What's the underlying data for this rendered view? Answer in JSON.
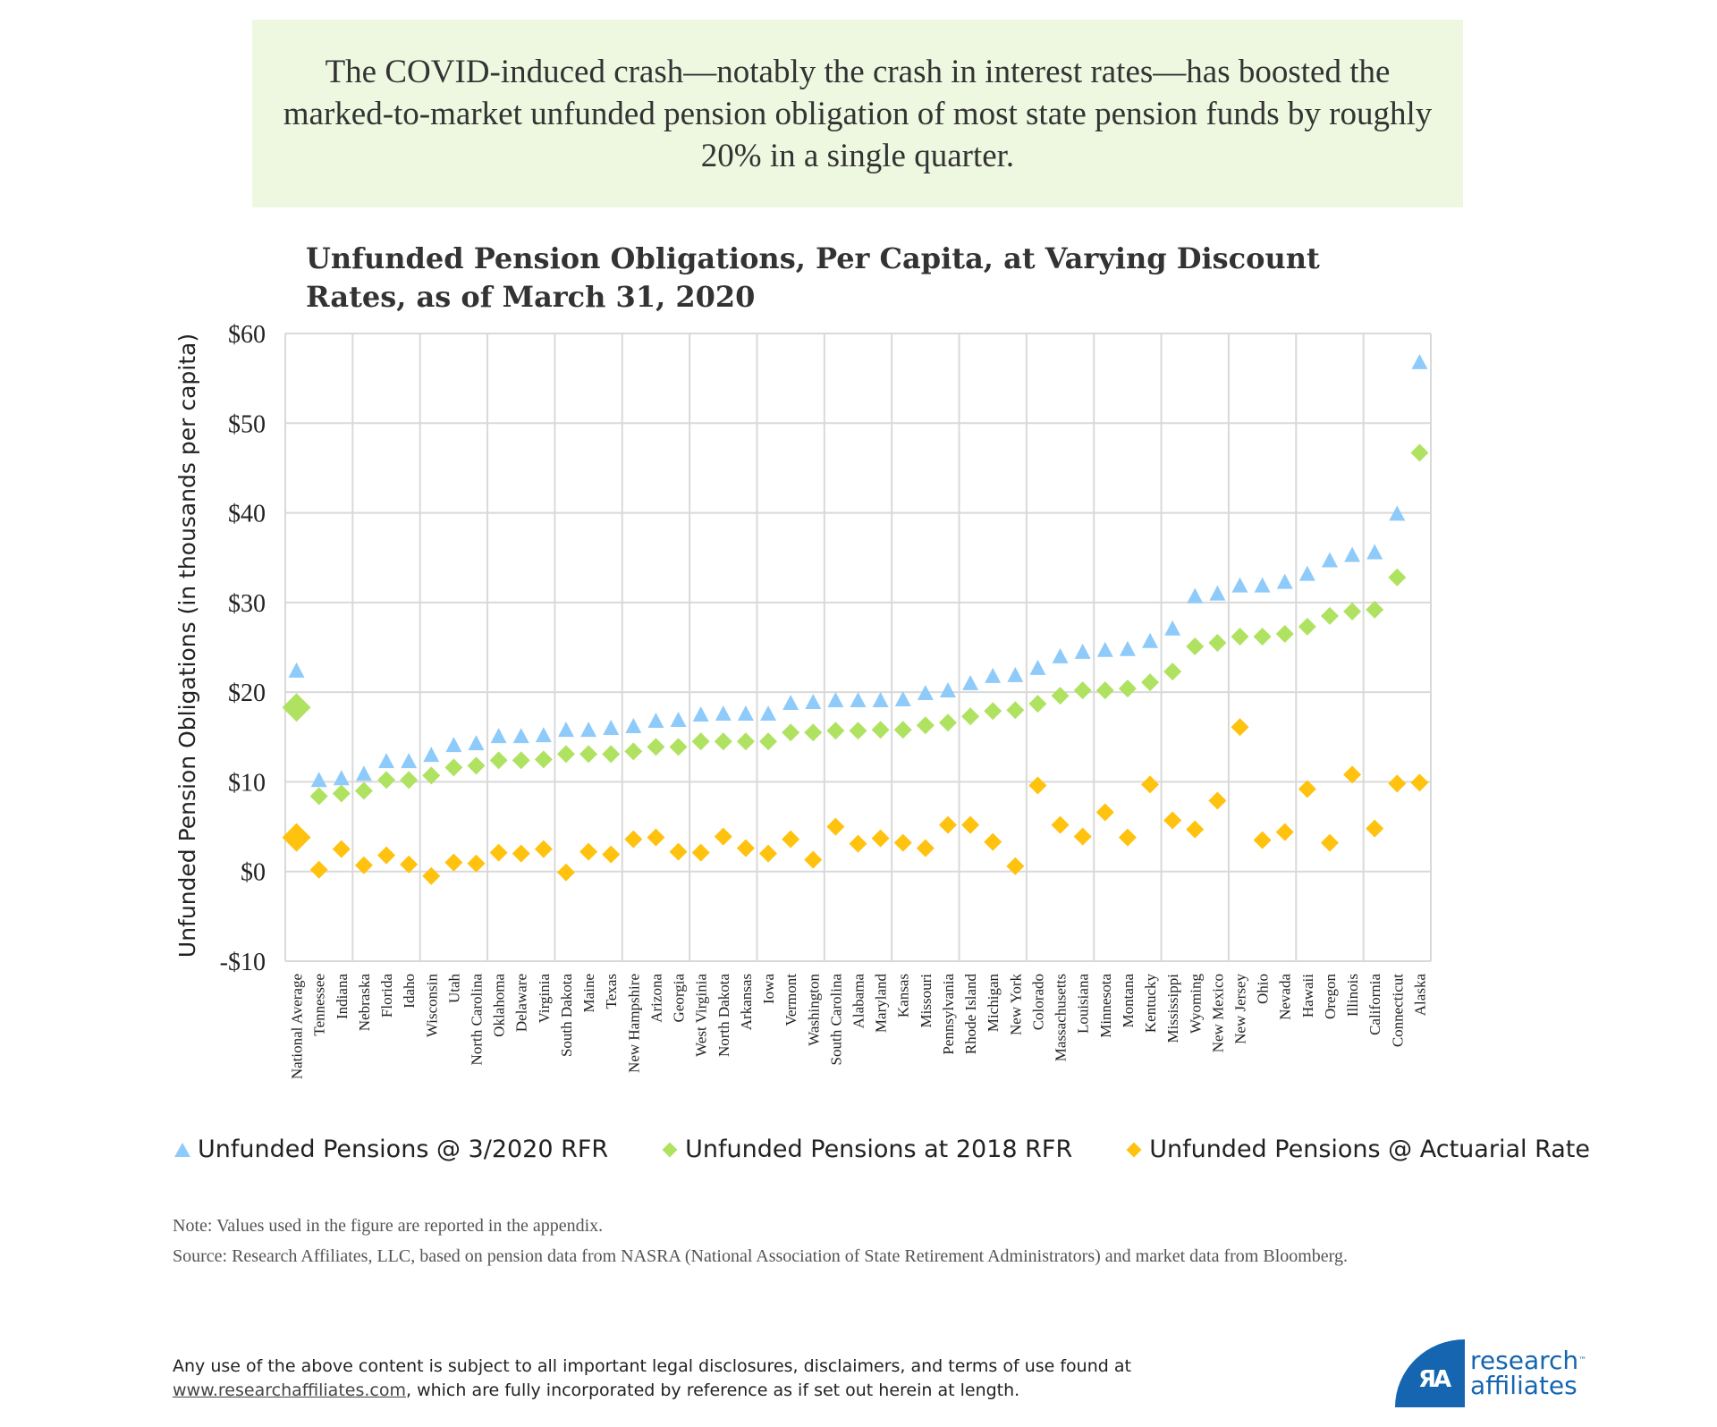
{
  "callout": {
    "text": "The COVID-induced crash—notably the crash in interest rates—has boosted the marked-to-market unfunded pension obligation of most state pension funds by roughly 20% in a single quarter."
  },
  "colors": {
    "rfr_2020": "#8ecbfa",
    "rfr_2018": "#b0e262",
    "actuarial": "#ffc20e",
    "grid": "#d9d9d9",
    "callout_bg": "#eef8e0",
    "brand": "#1565b0"
  },
  "chart_data": {
    "type": "scatter",
    "title": "Unfunded Pension Obligations, Per Capita, at Varying Discount Rates, as of March 31, 2020",
    "xlabel": "",
    "ylabel": "Unfunded Pension Obligations (in thousands per capita)",
    "ylim": [
      -10,
      60
    ],
    "yticks": [
      -10,
      0,
      10,
      20,
      30,
      40,
      50,
      60
    ],
    "ytick_labels": [
      "-$10",
      "$0",
      "$10",
      "$20",
      "$30",
      "$40",
      "$50",
      "$60"
    ],
    "grid": true,
    "legend_position": "bottom",
    "categories": [
      "National Average",
      "Tennessee",
      "Indiana",
      "Nebraska",
      "Florida",
      "Idaho",
      "Wisconsin",
      "Utah",
      "North Carolina",
      "Oklahoma",
      "Delaware",
      "Virginia",
      "South Dakota",
      "Maine",
      "Texas",
      "New Hampshire",
      "Arizona",
      "Georgia",
      "West Virginia",
      "North Dakota",
      "Arkansas",
      "Iowa",
      "Vermont",
      "Washington",
      "South Carolina",
      "Alabama",
      "Maryland",
      "Kansas",
      "Missouri",
      "Pennsylvania",
      "Rhode Island",
      "Michigan",
      "New York",
      "Colorado",
      "Massachusetts",
      "Louisiana",
      "Minnesota",
      "Montana",
      "Kentucky",
      "Mississippi",
      "Wyoming",
      "New Mexico",
      "New Jersey",
      "Ohio",
      "Nevada",
      "Hawaii",
      "Oregon",
      "Illinois",
      "California",
      "Connecticut",
      "Alaska"
    ],
    "series": [
      {
        "name": "Unfunded Pensions @ 3/2020 RFR",
        "marker": "triangle",
        "color": "#8ecbfa",
        "values": [
          22.3,
          10.1,
          10.3,
          10.8,
          12.2,
          12.2,
          12.9,
          14.0,
          14.2,
          15.0,
          15.0,
          15.1,
          15.7,
          15.7,
          15.9,
          16.1,
          16.7,
          16.8,
          17.4,
          17.5,
          17.5,
          17.5,
          18.7,
          18.8,
          19.0,
          19.0,
          19.0,
          19.1,
          19.8,
          20.1,
          20.9,
          21.7,
          21.8,
          22.6,
          23.9,
          24.4,
          24.6,
          24.7,
          25.6,
          27.0,
          30.6,
          30.9,
          31.8,
          31.8,
          32.2,
          33.1,
          34.6,
          35.2,
          35.5,
          39.8,
          56.7
        ]
      },
      {
        "name": "Unfunded Pensions at 2018 RFR",
        "marker": "diamond",
        "color": "#b0e262",
        "values": [
          18.3,
          8.4,
          8.7,
          9.0,
          10.2,
          10.2,
          10.7,
          11.6,
          11.8,
          12.4,
          12.4,
          12.5,
          13.1,
          13.1,
          13.1,
          13.4,
          13.9,
          13.9,
          14.5,
          14.5,
          14.5,
          14.5,
          15.5,
          15.5,
          15.7,
          15.7,
          15.8,
          15.8,
          16.3,
          16.6,
          17.3,
          17.9,
          18.0,
          18.7,
          19.6,
          20.2,
          20.2,
          20.4,
          21.1,
          22.3,
          25.1,
          25.5,
          26.2,
          26.2,
          26.5,
          27.3,
          28.5,
          29.0,
          29.2,
          32.8,
          46.7
        ]
      },
      {
        "name": "Unfunded Pensions @ Actuarial Rate",
        "marker": "diamond",
        "color": "#ffc20e",
        "values": [
          3.8,
          0.2,
          2.5,
          0.7,
          1.8,
          0.8,
          -0.5,
          1.0,
          0.9,
          2.1,
          2.0,
          2.5,
          -0.1,
          2.2,
          1.9,
          3.6,
          3.8,
          2.2,
          2.1,
          3.9,
          2.6,
          2.0,
          3.6,
          1.3,
          5.0,
          3.1,
          3.7,
          3.2,
          2.6,
          5.2,
          5.2,
          3.3,
          0.6,
          9.6,
          5.2,
          3.9,
          6.6,
          3.8,
          9.7,
          5.7,
          4.7,
          7.9,
          16.1,
          3.5,
          4.4,
          9.2,
          3.2,
          10.8,
          4.8,
          9.8,
          9.9
        ]
      }
    ]
  },
  "notes": {
    "note": "Note: Values used in the figure are reported in the appendix.",
    "source": "Source: Research Affiliates, LLC, based on pension data from NASRA (National Association of State Retirement Administrators) and market data from Bloomberg."
  },
  "disclaimer": {
    "line1": "Any use of the above content is subject to all important legal disclosures, disclaimers, and terms of use found at",
    "link": "www.researchaffiliates.com",
    "line2": ", which are fully incorporated by reference as if set out herein at length."
  },
  "logo": {
    "mark": "ЯA",
    "line1": "research",
    "line2": "affiliates",
    "tm": "™"
  }
}
